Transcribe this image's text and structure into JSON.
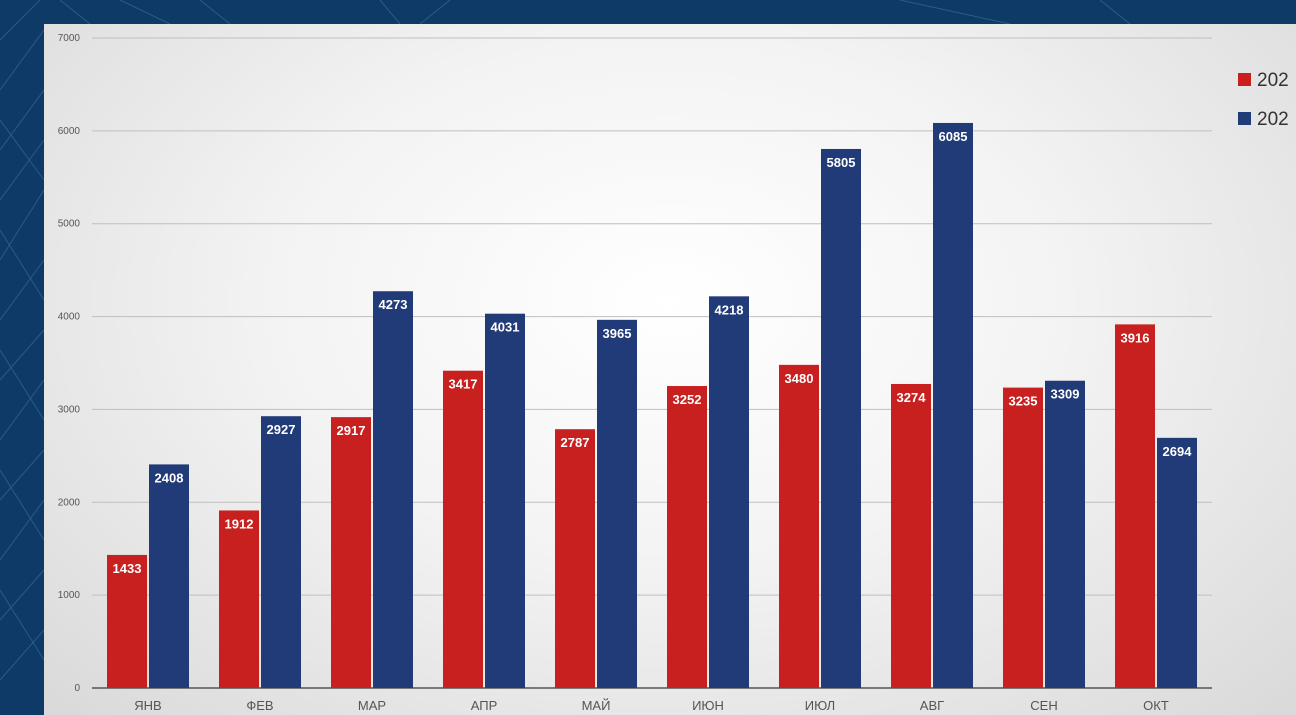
{
  "colors": {
    "series_2023": "#c8201f",
    "series_2024": "#213a78",
    "background": "#0d3a66"
  },
  "chart_data": {
    "type": "bar",
    "categories": [
      "ЯНВ",
      "ФЕВ",
      "МАР",
      "АПР",
      "МАЙ",
      "ИЮН",
      "ИЮЛ",
      "АВГ",
      "СЕН",
      "ОКТ"
    ],
    "series": [
      {
        "name": "202",
        "color": "#c8201f",
        "values": [
          1433,
          1912,
          2917,
          3417,
          2787,
          3252,
          3480,
          3274,
          3235,
          3916
        ]
      },
      {
        "name": "202",
        "color": "#213a78",
        "values": [
          2408,
          2927,
          4273,
          4031,
          3965,
          4218,
          5805,
          6085,
          3309,
          2694
        ]
      }
    ],
    "ylim": [
      0,
      7000
    ],
    "yticks": [
      0,
      1000,
      2000,
      3000,
      4000,
      5000,
      6000,
      7000
    ],
    "grid": true,
    "legend": "top-right",
    "data_labels": true
  }
}
